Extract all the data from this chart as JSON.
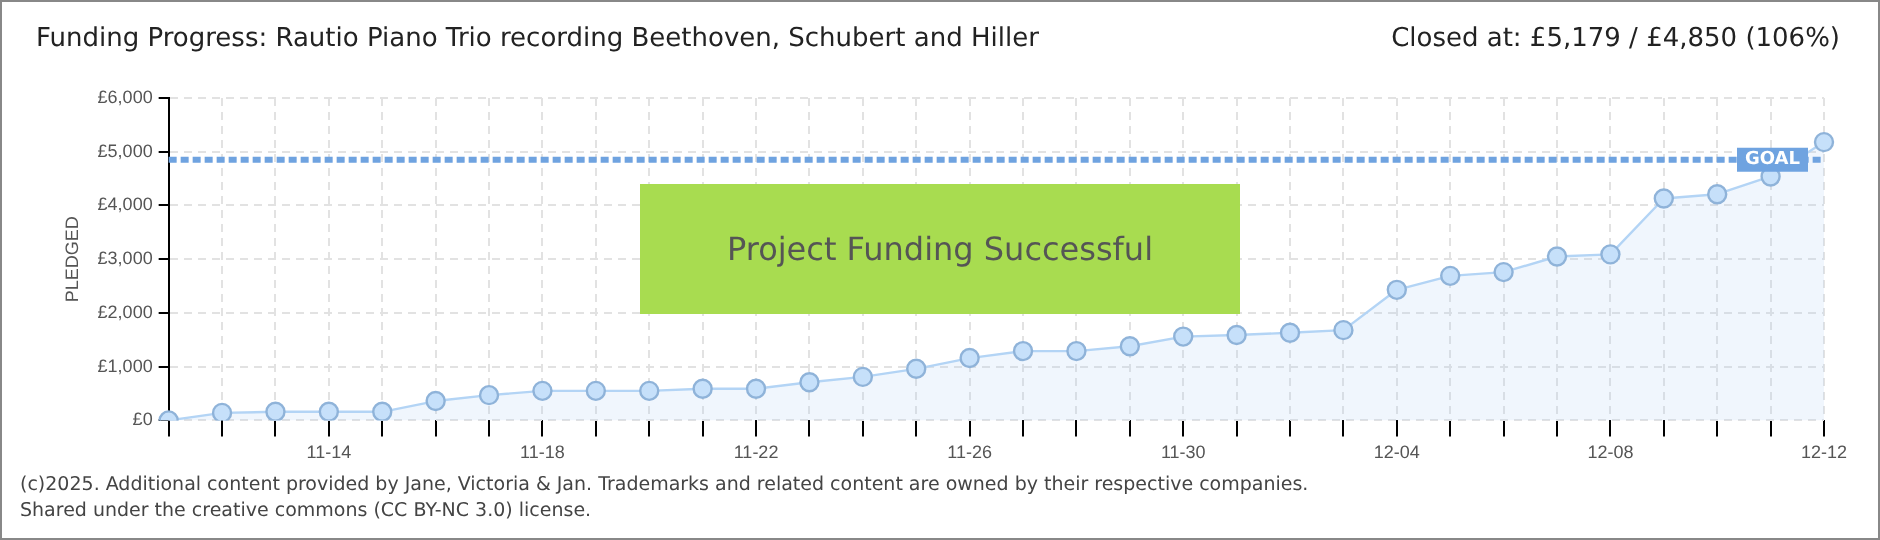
{
  "chart_data": {
    "type": "area",
    "title": "Funding Progress: Rautio Piano Trio recording Beethoven, Schubert and Hiller",
    "subtitle": "Closed at:  £5,179 /  £4,850 (106%)",
    "ylabel": "PLEDGED",
    "categories": [
      null,
      null,
      null,
      "11-14",
      null,
      null,
      null,
      "11-18",
      null,
      null,
      null,
      "11-22",
      null,
      null,
      null,
      "11-26",
      null,
      null,
      null,
      "11-30",
      null,
      null,
      null,
      "12-04",
      null,
      null,
      null,
      "12-08",
      null,
      null,
      null,
      "12-12"
    ],
    "series": [
      {
        "color": "#b3d4f5",
        "values": [
          0,
          140,
          160,
          160,
          160,
          360,
          470,
          550,
          550,
          550,
          590,
          590,
          710,
          810,
          960,
          1160,
          1290,
          1290,
          1380,
          1560,
          1590,
          1630,
          1680,
          2430,
          2690,
          2760,
          3050,
          3090,
          4130,
          4210,
          4540,
          5179
        ]
      }
    ],
    "ylim": [
      0,
      6000
    ],
    "yticks": [
      {
        "value": 0,
        "label": "£0"
      },
      {
        "value": 1000,
        "label": "£1,000"
      },
      {
        "value": 2000,
        "label": "£2,000"
      },
      {
        "value": 3000,
        "label": "£3,000"
      },
      {
        "value": 4000,
        "label": "£4,000"
      },
      {
        "value": 5000,
        "label": "£5,000"
      },
      {
        "value": 6000,
        "label": "£6,000"
      }
    ],
    "ref_lines": [
      {
        "axis": "y",
        "value": 4850,
        "label": "GOAL",
        "color": "#6fa3e0",
        "line_style": "dashed"
      }
    ],
    "grid": true,
    "marker": "circle",
    "legend": false,
    "annotations": [
      "Project Funding Successful",
      "(c)2025. Additional content provided by Jane, Victoria & Jan. Trademarks and related content are owned by their respective companies.",
      "Shared under the creative commons (CC BY-NC 3.0) license."
    ]
  }
}
